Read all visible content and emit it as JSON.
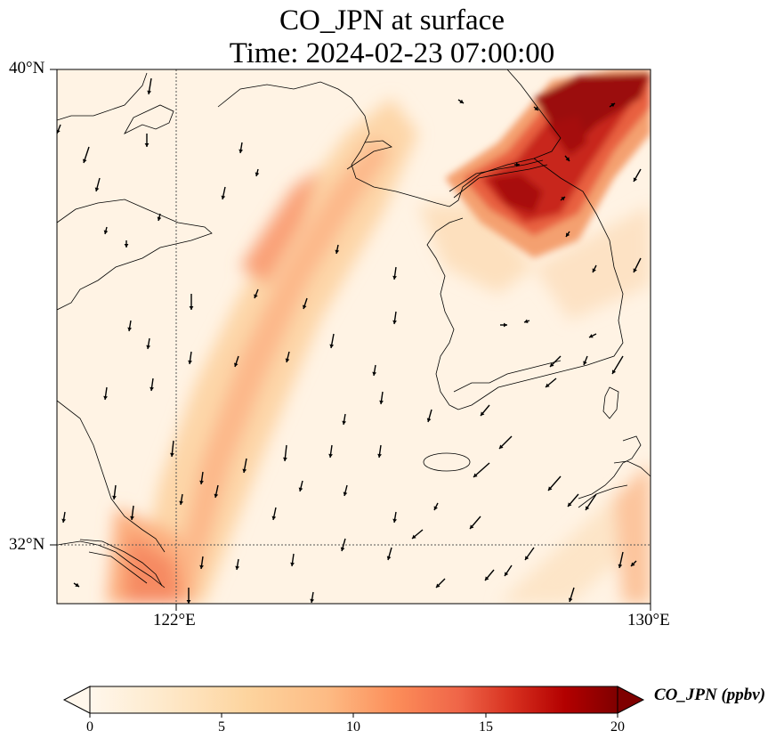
{
  "title": "CO_JPN at surface",
  "subtitle": "Time: 2024-02-23 07:00:00",
  "map": {
    "lat_labels": [
      "40°N",
      "32°N"
    ],
    "lon_labels": [
      "122°E",
      "130°E"
    ],
    "extent": {
      "lon": [
        120,
        130
      ],
      "lat": [
        31,
        40
      ]
    },
    "gridlines": {
      "lon": 122,
      "lat": 32,
      "style": "dotted"
    }
  },
  "colorbar": {
    "label": "CO_JPN (ppbv)",
    "ticks": [
      "0",
      "5",
      "10",
      "15",
      "20"
    ],
    "range": [
      0,
      20
    ],
    "extend": "both",
    "colormap": "OrRd",
    "colors": [
      "#fff7ec",
      "#fee8c8",
      "#fdd49e",
      "#fdbb84",
      "#fc8d59",
      "#ef6548",
      "#d7301f",
      "#b30000",
      "#7f0000"
    ]
  },
  "colors": {
    "background_field": "#fff3e4",
    "high_plume": "#8b0000",
    "coastline": "#000000",
    "arrows": "#000000"
  },
  "wind_vectors": "southerly-to-northerly arrows pointing mostly south/south-west across the domain"
}
